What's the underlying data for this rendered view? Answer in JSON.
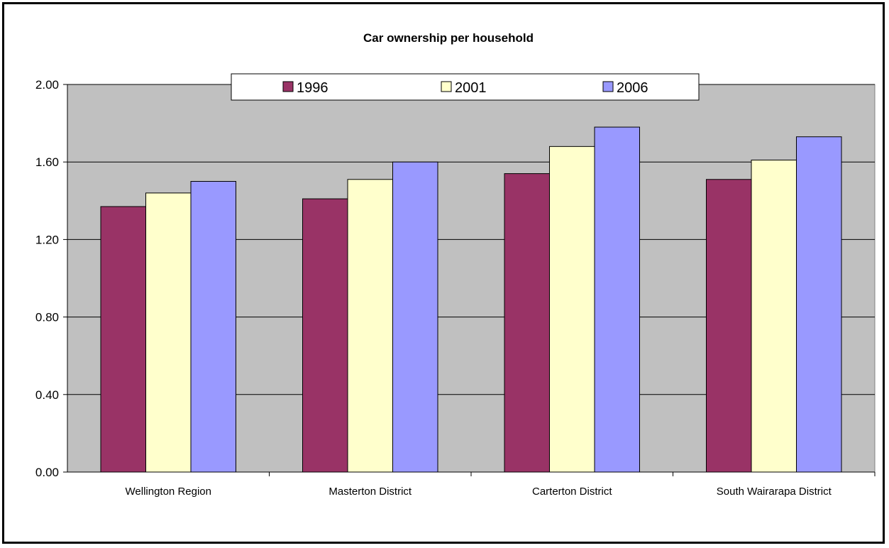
{
  "chart_data": {
    "type": "bar",
    "title": "Car ownership per household",
    "xlabel": "",
    "ylabel": "",
    "categories": [
      "Wellington Region",
      "Masterton District",
      "Carterton District",
      "South Wairarapa District"
    ],
    "series": [
      {
        "name": "1996",
        "values": [
          1.37,
          1.41,
          1.54,
          1.51
        ],
        "color": "#993366"
      },
      {
        "name": "2001",
        "values": [
          1.44,
          1.51,
          1.68,
          1.61
        ],
        "color": "#FFFFCC"
      },
      {
        "name": "2006",
        "values": [
          1.5,
          1.6,
          1.78,
          1.73
        ],
        "color": "#9999FF"
      }
    ],
    "ylim": [
      0,
      2
    ],
    "yticks": [
      "0.00",
      "0.40",
      "0.80",
      "1.20",
      "1.60",
      "2.00"
    ],
    "grid": true,
    "legend_position": "top"
  },
  "colors": {
    "plot_background": "#C0C0C0",
    "gridline": "#000000"
  }
}
